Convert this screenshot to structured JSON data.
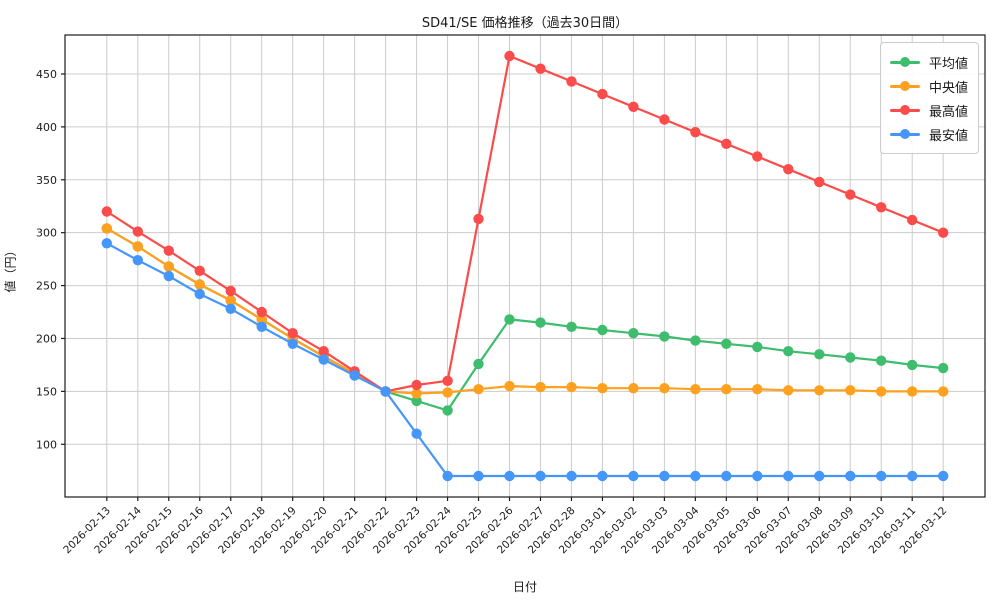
{
  "chart_data": {
    "type": "line",
    "title": "SD41/SE 価格推移（過去30日間）",
    "xlabel": "日付",
    "ylabel": "値（円）",
    "x": [
      "2026-02-13",
      "2026-02-14",
      "2026-02-15",
      "2026-02-16",
      "2026-02-17",
      "2026-02-18",
      "2026-02-19",
      "2026-02-20",
      "2026-02-21",
      "2026-02-22",
      "2026-02-23",
      "2026-02-24",
      "2026-02-25",
      "2026-02-26",
      "2026-02-27",
      "2026-02-28",
      "2026-03-01",
      "2026-03-02",
      "2026-03-03",
      "2026-03-04",
      "2026-03-05",
      "2026-03-06",
      "2026-03-07",
      "2026-03-08",
      "2026-03-09",
      "2026-03-10",
      "2026-03-11",
      "2026-03-12"
    ],
    "series": [
      {
        "key": "avg",
        "name": "平均値",
        "color": "#3dbd6d",
        "values": [
          304,
          287,
          268,
          251,
          236,
          218,
          200,
          183,
          167,
          150,
          141,
          132,
          176,
          218,
          215,
          211,
          208,
          205,
          202,
          198,
          195,
          192,
          188,
          185,
          182,
          179,
          175,
          172
        ]
      },
      {
        "key": "median",
        "name": "中央値",
        "color": "#ffa01e",
        "values": [
          304,
          287,
          268,
          251,
          236,
          218,
          200,
          183,
          167,
          150,
          148,
          149,
          152,
          155,
          154,
          154,
          153,
          153,
          153,
          152,
          152,
          152,
          151,
          151,
          151,
          150,
          150,
          150
        ]
      },
      {
        "key": "max",
        "name": "最高値",
        "color": "#fb4c4c",
        "values": [
          320,
          301,
          283,
          264,
          245,
          225,
          205,
          188,
          169,
          150,
          156,
          160,
          313,
          467,
          455,
          443,
          431,
          419,
          407,
          395,
          384,
          372,
          360,
          348,
          336,
          324,
          312,
          300
        ]
      },
      {
        "key": "min",
        "name": "最安値",
        "color": "#4596fb",
        "values": [
          290,
          274,
          259,
          242,
          228,
          211,
          195,
          180,
          165,
          150,
          110,
          70,
          70,
          70,
          70,
          70,
          70,
          70,
          70,
          70,
          70,
          70,
          70,
          70,
          70,
          70,
          70,
          70
        ]
      }
    ],
    "yticks": [
      100,
      150,
      200,
      250,
      300,
      350,
      400,
      450
    ],
    "ylim": [
      50,
      487
    ],
    "grid": true,
    "grid_color": "#cccccc",
    "legend_position": "upper right",
    "draw_order": [
      "avg",
      "median",
      "max",
      "min"
    ]
  }
}
